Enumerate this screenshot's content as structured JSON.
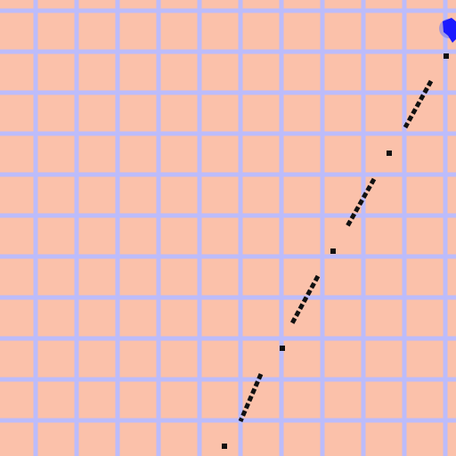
{
  "scene": {
    "background_color": "#fbc1aa",
    "grid_line_color": "#bcbcfb",
    "trail_color": "#111111",
    "agent_color": "#1a1aff",
    "agent_icon": "blue-blob-agent",
    "grid": {
      "columns": 11,
      "rows": 11
    }
  }
}
